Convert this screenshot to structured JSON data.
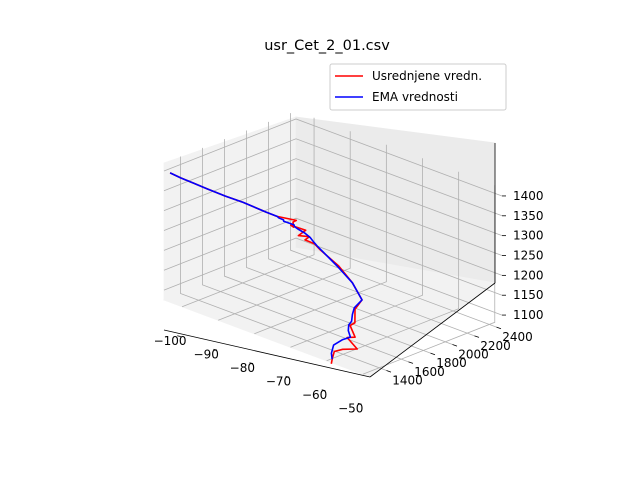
{
  "chart_data": {
    "type": "line",
    "projection": "3d",
    "title": "usr_Cet_2_01.csv",
    "xlabel": "",
    "ylabel": "",
    "zlabel": "",
    "xlim": [
      -105,
      -48
    ],
    "ylim": [
      1250,
      2450
    ],
    "zlim": [
      1075,
      1420
    ],
    "x_ticks": [
      -100,
      -90,
      -80,
      -70,
      -60,
      -50
    ],
    "x_tick_labels": [
      "−100",
      "−90",
      "−80",
      "−70",
      "−60",
      "−50"
    ],
    "y_ticks": [
      1400,
      1600,
      1800,
      2000,
      2200,
      2400
    ],
    "y_tick_labels": [
      "1400",
      "1600",
      "1800",
      "2000",
      "2200",
      "2400"
    ],
    "z_ticks": [
      1100,
      1150,
      1200,
      1250,
      1300,
      1350,
      1400
    ],
    "z_tick_labels": [
      "1100",
      "1150",
      "1200",
      "1250",
      "1300",
      "1350",
      "1400"
    ],
    "grid": true,
    "legend_position": "top-right",
    "series": [
      {
        "name": "Usrednjene vredn.",
        "color": "#ff0000",
        "x": [
          -103.0,
          -101.2,
          -99.2,
          -97.1,
          -94.1,
          -91.3,
          -87.4,
          -85.6,
          -82.7,
          -83.0,
          -82.2,
          -83.6,
          -80.7,
          -81.5,
          -80.0,
          -80.3,
          -78.9,
          -77.6,
          -73.4,
          -69.0,
          -63.9,
          -62.8,
          -59.8,
          -60.5,
          -57.3,
          -58.9,
          -54.9,
          -58.3,
          -59.4,
          -59.0,
          -58.4
        ],
        "y": [
          1240,
          1280,
          1330,
          1380,
          1450,
          1520,
          1600,
          1640,
          1720,
          1700,
          1680,
          1700,
          1740,
          1700,
          1750,
          1720,
          1760,
          1770,
          1800,
          1780,
          1700,
          1600,
          1500,
          1480,
          1420,
          1400,
          1360,
          1340,
          1300,
          1270,
          1240
        ],
        "z": [
          1403,
          1392,
          1380,
          1368,
          1352,
          1338,
          1318,
          1309,
          1300,
          1297,
          1289,
          1287,
          1280,
          1268,
          1265,
          1259,
          1250,
          1238,
          1208,
          1183,
          1166,
          1157,
          1144,
          1137,
          1125,
          1121,
          1110,
          1100,
          1095,
          1083,
          1074
        ]
      },
      {
        "name": "EMA vrednosti",
        "color": "#0000ff",
        "x": [
          -103.0,
          -101.2,
          -99.2,
          -97.1,
          -94.1,
          -91.3,
          -87.4,
          -85.5,
          -85.3,
          -84.4,
          -84.5,
          -82.4,
          -82.6,
          -81.8,
          -80.3,
          -79.3,
          -78.7,
          -78.0,
          -73.4,
          -69.0,
          -63.9,
          -63.3,
          -62.0,
          -60.7,
          -60.6,
          -59.8,
          -58.3,
          -59.5,
          -60.5,
          -59.6,
          -58.5
        ],
        "y": [
          1240,
          1280,
          1330,
          1380,
          1450,
          1520,
          1600,
          1640,
          1645,
          1660,
          1665,
          1690,
          1700,
          1705,
          1720,
          1735,
          1745,
          1755,
          1790,
          1780,
          1700,
          1610,
          1550,
          1500,
          1470,
          1440,
          1410,
          1380,
          1330,
          1280,
          1250
        ],
        "z": [
          1403,
          1392,
          1380,
          1368,
          1352,
          1338,
          1318,
          1309,
          1306,
          1302,
          1298,
          1293,
          1287,
          1283,
          1276,
          1267,
          1257,
          1248,
          1208,
          1183,
          1166,
          1158,
          1152,
          1145,
          1139,
          1131,
          1123,
          1116,
          1104,
          1092,
          1084
        ]
      }
    ]
  }
}
